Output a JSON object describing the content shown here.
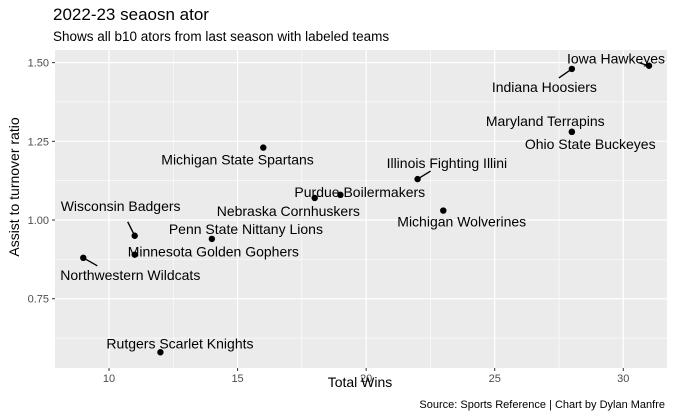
{
  "chart_data": {
    "type": "scatter",
    "title": "2022-23 seaosn ator",
    "subtitle": "Shows all b10 ators from last season with labeled teams",
    "xlabel": "Total Wins",
    "ylabel": "Assist to turnover ratio",
    "caption": "Source: Sports Reference | Chart by Dylan Manfre",
    "xlim": [
      7.9,
      31.7
    ],
    "ylim": [
      0.53,
      1.54
    ],
    "x_ticks": [
      10,
      15,
      20,
      25,
      30
    ],
    "x_tick_labels": [
      "10",
      "15",
      "20",
      "25",
      "30"
    ],
    "y_ticks": [
      0.75,
      1.0,
      1.25,
      1.5
    ],
    "y_tick_labels": [
      "0.75",
      "1.00",
      "1.25",
      "1.50"
    ],
    "grid": true,
    "background": "#ebebeb",
    "point_color": "#000000",
    "points": [
      {
        "team": "Iowa Hawkeyes",
        "x": 31,
        "y": 1.49
      },
      {
        "team": "Indiana Hoosiers",
        "x": 28,
        "y": 1.48
      },
      {
        "team": "Maryland Terrapins",
        "x": 28,
        "y": 1.28
      },
      {
        "team": "Ohio State Buckeyes",
        "x": 28,
        "y": 1.28
      },
      {
        "team": "Michigan State Spartans",
        "x": 16,
        "y": 1.23
      },
      {
        "team": "Illinois Fighting Illini",
        "x": 22,
        "y": 1.13
      },
      {
        "team": "Purdue Boilermakers",
        "x": 19,
        "y": 1.08
      },
      {
        "team": "Nebraska Cornhuskers",
        "x": 18,
        "y": 1.07
      },
      {
        "team": "Michigan Wolverines",
        "x": 23,
        "y": 1.03
      },
      {
        "team": "Wisconsin Badgers",
        "x": 11,
        "y": 0.95
      },
      {
        "team": "Penn State Nittany Lions",
        "x": 14,
        "y": 0.94
      },
      {
        "team": "Minnesota Golden Gophers",
        "x": 11,
        "y": 0.89
      },
      {
        "team": "Northwestern Wildcats",
        "x": 9,
        "y": 0.88
      },
      {
        "team": "Rutgers Scarlet Knights",
        "x": 12,
        "y": 0.58
      }
    ]
  }
}
